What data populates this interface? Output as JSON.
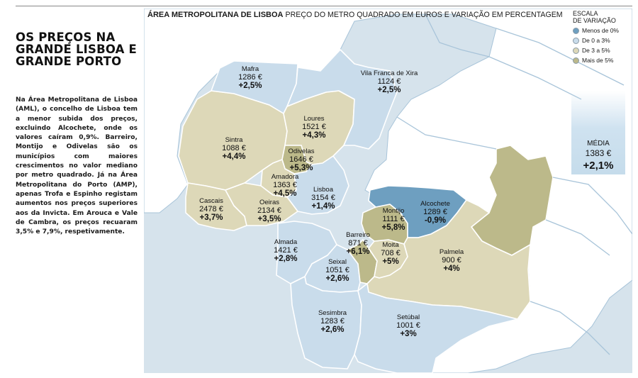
{
  "sidebar": {
    "headline": "OS PREÇOS NA GRANDE LISBOA E GRANDE PORTO",
    "body": "Na Área Metropolitana de Lisboa (AML), o concelho de Lisboa tem a menor subida dos preços, excluindo Alcochete, onde os valores caíram 0,9%. Barreiro, Montijo e Odivelas são os municípios com maiores crescimentos no valor mediano por metro quadrado. Já na Área Metropolitana do Porto (AMP), apenas Trofa e Espinho registam aumentos nos preços superiores aos da Invicta. Em Arouca e Vale de Cambra, os preços recuaram 3,5% e 7,9%, respetivamente."
  },
  "map": {
    "title": "ÁREA METROPOLITANA DE LISBOA",
    "subtitle": "PREÇO DO METRO QUADRADO EM EUROS E VARIAÇÃO EM PERCENTAGEM",
    "colors": {
      "sea": "#d6e3ec",
      "land_outside": "#ffffff",
      "border_outside": "#a8c4d9",
      "district_border": "#ffffff",
      "scale": {
        "menos_0": "#6e9fc0",
        "de_0_3": "#c9dceb",
        "de_3_5": "#ddd8b8",
        "mais_5": "#bcb98a"
      }
    },
    "municipalities": [
      {
        "name": "Mafra",
        "price": "1286 €",
        "change": "+2,5%",
        "category": "de_0_3"
      },
      {
        "name": "Vila Franca de Xira",
        "price": "1124 €",
        "change": "+2,5%",
        "category": "de_0_3"
      },
      {
        "name": "Loures",
        "price": "1521 €",
        "change": "+4,3%",
        "category": "de_3_5"
      },
      {
        "name": "Sintra",
        "price": "1088 €",
        "change": "+4,4%",
        "category": "de_3_5"
      },
      {
        "name": "Odivelas",
        "price": "1646 €",
        "change": "+5,3%",
        "category": "mais_5"
      },
      {
        "name": "Amadora",
        "price": "1363 €",
        "change": "+4,5%",
        "category": "de_3_5"
      },
      {
        "name": "Lisboa",
        "price": "3154 €",
        "change": "+1,4%",
        "category": "de_0_3"
      },
      {
        "name": "Cascais",
        "price": "2478 €",
        "change": "+3,7%",
        "category": "de_3_5"
      },
      {
        "name": "Oeiras",
        "price": "2134 €",
        "change": "+3,5%",
        "category": "de_3_5"
      },
      {
        "name": "Alcochete",
        "price": "1289 €",
        "change": "-0,9%",
        "category": "menos_0"
      },
      {
        "name": "Montijo",
        "price": "1111 €",
        "change": "+5,8%",
        "category": "mais_5"
      },
      {
        "name": "Barreiro",
        "price": "871 €",
        "change": "+6,1%",
        "category": "mais_5"
      },
      {
        "name": "Moita",
        "price": "708 €",
        "change": "+5%",
        "category": "de_3_5"
      },
      {
        "name": "Palmela",
        "price": "900 €",
        "change": "+4%",
        "category": "de_3_5"
      },
      {
        "name": "Almada",
        "price": "1421 €",
        "change": "+2,8%",
        "category": "de_0_3"
      },
      {
        "name": "Seixal",
        "price": "1051 €",
        "change": "+2,6%",
        "category": "de_0_3"
      },
      {
        "name": "Sesimbra",
        "price": "1283 €",
        "change": "+2,6%",
        "category": "de_0_3"
      },
      {
        "name": "Setúbal",
        "price": "1001 €",
        "change": "+3%",
        "category": "de_0_3"
      }
    ]
  },
  "legend": {
    "title_line1": "ESCALA",
    "title_line2": "DE VARIAÇÃO",
    "items": [
      {
        "label": "Menos de 0%",
        "category": "menos_0"
      },
      {
        "label": "De 0 a 3%",
        "category": "de_0_3"
      },
      {
        "label": "De 3 a 5%",
        "category": "de_3_5"
      },
      {
        "label": "Mais de 5%",
        "category": "mais_5"
      }
    ]
  },
  "average": {
    "label": "MÉDIA",
    "price": "1383 €",
    "change": "+2,1%"
  }
}
